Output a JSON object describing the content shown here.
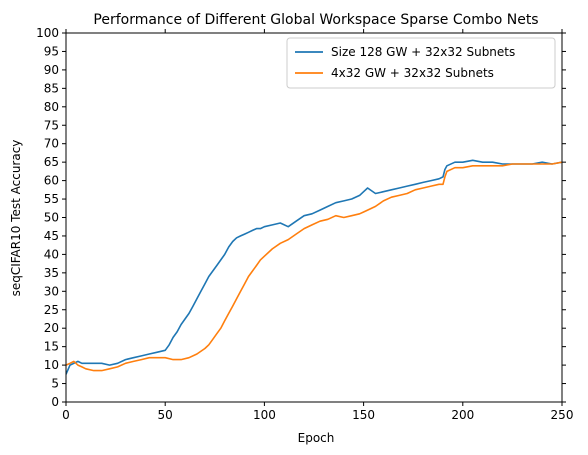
{
  "chart_data": {
    "type": "line",
    "title": "Performance of Different Global Workspace Sparse Combo Nets",
    "xlabel": "Epoch",
    "ylabel": "seqCIFAR10 Test Accuracy",
    "xlim": [
      0,
      250
    ],
    "ylim": [
      0,
      100
    ],
    "xticks": [
      0,
      50,
      100,
      150,
      200,
      250
    ],
    "yticks": [
      0,
      5,
      10,
      15,
      20,
      25,
      30,
      35,
      40,
      45,
      50,
      55,
      60,
      65,
      70,
      75,
      80,
      85,
      90,
      95,
      100
    ],
    "grid": false,
    "legend_position": "top-right",
    "series": [
      {
        "name": "Size 128 GW + 32x32 Subnets",
        "color": "#1f77b4",
        "x": [
          0,
          2,
          4,
          6,
          8,
          10,
          14,
          18,
          22,
          26,
          30,
          34,
          38,
          42,
          46,
          50,
          52,
          54,
          56,
          58,
          60,
          62,
          64,
          66,
          68,
          70,
          72,
          74,
          76,
          78,
          80,
          82,
          84,
          86,
          88,
          90,
          92,
          94,
          96,
          98,
          100,
          104,
          108,
          112,
          116,
          120,
          124,
          128,
          132,
          136,
          140,
          144,
          148,
          150,
          152,
          156,
          160,
          164,
          168,
          172,
          176,
          180,
          184,
          188,
          190,
          191,
          192,
          196,
          200,
          205,
          210,
          215,
          220,
          225,
          230,
          235,
          240,
          245,
          250
        ],
        "values": [
          7.5,
          10,
          10.5,
          11,
          10.5,
          10.5,
          10.5,
          10.5,
          10,
          10.5,
          11.5,
          12,
          12.5,
          13,
          13.5,
          14,
          15.5,
          17.5,
          19,
          21,
          22.5,
          24,
          26,
          28,
          30,
          32,
          34,
          35.5,
          37,
          38.5,
          40,
          42,
          43.5,
          44.5,
          45,
          45.5,
          46,
          46.5,
          47,
          47,
          47.5,
          48,
          48.5,
          47.5,
          49,
          50.5,
          51,
          52,
          53,
          54,
          54.5,
          55,
          56,
          57,
          58,
          56.5,
          57,
          57.5,
          58,
          58.5,
          59,
          59.5,
          60,
          60.5,
          61,
          63,
          64,
          65,
          65,
          65.5,
          65,
          65,
          64.5,
          64.5,
          64.5,
          64.5,
          65,
          64.5,
          65
        ]
      },
      {
        "name": "4x32 GW + 32x32 Subnets",
        "color": "#ff7f0e",
        "x": [
          0,
          2,
          4,
          6,
          8,
          10,
          14,
          18,
          22,
          26,
          30,
          34,
          38,
          42,
          46,
          50,
          54,
          58,
          62,
          66,
          70,
          72,
          74,
          76,
          78,
          80,
          82,
          84,
          86,
          88,
          90,
          92,
          94,
          96,
          98,
          100,
          104,
          108,
          112,
          116,
          120,
          124,
          128,
          132,
          136,
          140,
          144,
          148,
          150,
          152,
          156,
          160,
          164,
          168,
          172,
          176,
          180,
          184,
          188,
          190,
          191,
          192,
          196,
          200,
          205,
          210,
          215,
          220,
          225,
          230,
          235,
          240,
          245,
          250
        ],
        "values": [
          10,
          10.5,
          11,
          10,
          9.5,
          9,
          8.5,
          8.5,
          9,
          9.5,
          10.5,
          11,
          11.5,
          12,
          12,
          12,
          11.5,
          11.5,
          12,
          13,
          14.5,
          15.5,
          17,
          18.5,
          20,
          22,
          24,
          26,
          28,
          30,
          32,
          34,
          35.5,
          37,
          38.5,
          39.5,
          41.5,
          43,
          44,
          45.5,
          47,
          48,
          49,
          49.5,
          50.5,
          50,
          50.5,
          51,
          51.5,
          52,
          53,
          54.5,
          55.5,
          56,
          56.5,
          57.5,
          58,
          58.5,
          59,
          59,
          61,
          62.5,
          63.5,
          63.5,
          64,
          64,
          64,
          64,
          64.5,
          64.5,
          64.5,
          64.5,
          64.5,
          65
        ]
      }
    ]
  }
}
